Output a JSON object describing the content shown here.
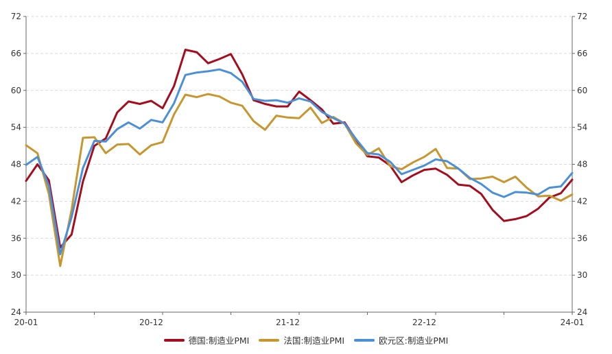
{
  "chart_data": {
    "type": "line",
    "xlim": [
      "2020-01",
      "2024-01"
    ],
    "x_tick_labels": [
      "20-01",
      "20-12",
      "21-12",
      "22-12",
      "24-01"
    ],
    "ylim": [
      24,
      72
    ],
    "y_ticks": [
      24,
      30,
      36,
      42,
      48,
      54,
      60,
      66,
      72
    ],
    "grid": true,
    "legend_position": "bottom",
    "x": [
      "2020-01",
      "2020-02",
      "2020-03",
      "2020-04",
      "2020-05",
      "2020-06",
      "2020-07",
      "2020-08",
      "2020-09",
      "2020-10",
      "2020-11",
      "2020-12",
      "2021-01",
      "2021-02",
      "2021-03",
      "2021-04",
      "2021-05",
      "2021-06",
      "2021-07",
      "2021-08",
      "2021-09",
      "2021-10",
      "2021-11",
      "2021-12",
      "2022-01",
      "2022-02",
      "2022-03",
      "2022-04",
      "2022-05",
      "2022-06",
      "2022-07",
      "2022-08",
      "2022-09",
      "2022-10",
      "2022-11",
      "2022-12",
      "2023-01",
      "2023-02",
      "2023-03",
      "2023-04",
      "2023-05",
      "2023-06",
      "2023-07",
      "2023-08",
      "2023-09",
      "2023-10",
      "2023-11",
      "2023-12",
      "2024-01"
    ],
    "series": [
      {
        "name": "德国:制造业PMI",
        "color": "#a50d1e",
        "values": [
          45.3,
          48.0,
          45.4,
          34.5,
          36.6,
          45.2,
          51.0,
          52.2,
          56.4,
          58.2,
          57.8,
          58.3,
          57.1,
          60.7,
          66.6,
          66.2,
          64.4,
          65.1,
          65.9,
          62.6,
          58.4,
          57.8,
          57.4,
          57.4,
          59.8,
          58.4,
          56.9,
          54.6,
          54.8,
          52.0,
          49.3,
          49.1,
          47.8,
          45.1,
          46.2,
          47.1,
          47.3,
          46.3,
          44.7,
          44.5,
          43.2,
          40.6,
          38.8,
          39.1,
          39.6,
          40.8,
          42.6,
          43.3,
          45.5
        ]
      },
      {
        "name": "法国:制造业PMI",
        "color": "#c8962e",
        "values": [
          51.1,
          49.8,
          43.2,
          31.5,
          40.6,
          52.3,
          52.4,
          49.8,
          51.2,
          51.3,
          49.6,
          51.1,
          51.6,
          56.1,
          59.3,
          58.9,
          59.4,
          59.0,
          58.0,
          57.5,
          55.0,
          53.6,
          55.9,
          55.6,
          55.5,
          57.2,
          54.7,
          55.7,
          54.6,
          51.4,
          49.5,
          50.6,
          47.7,
          47.2,
          48.3,
          49.2,
          50.5,
          47.4,
          47.3,
          45.6,
          45.7,
          46.0,
          45.1,
          46.0,
          44.2,
          42.8,
          42.9,
          42.1,
          43.1
        ]
      },
      {
        "name": "欧元区:制造业PMI",
        "color": "#4a90d9",
        "values": [
          47.9,
          49.2,
          44.5,
          33.4,
          39.4,
          47.4,
          51.8,
          51.7,
          53.7,
          54.8,
          53.8,
          55.2,
          54.8,
          57.9,
          62.5,
          62.9,
          63.1,
          63.4,
          62.8,
          61.4,
          58.6,
          58.3,
          58.4,
          58.0,
          58.7,
          58.2,
          56.5,
          55.5,
          54.6,
          52.1,
          49.8,
          49.6,
          48.4,
          46.4,
          47.1,
          47.8,
          48.8,
          48.5,
          47.3,
          45.8,
          44.8,
          43.4,
          42.7,
          43.5,
          43.4,
          43.1,
          44.2,
          44.4,
          46.6
        ]
      }
    ]
  }
}
